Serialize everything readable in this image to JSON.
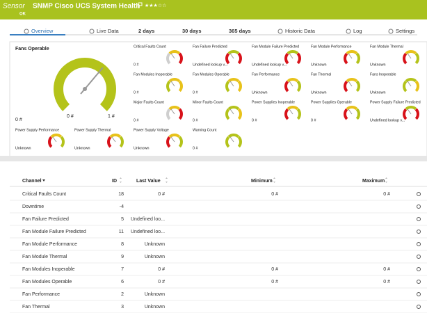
{
  "header": {
    "prefix": "Sensor",
    "title": "SNMP Cisco UCS System Health",
    "rating": "★★★☆☆",
    "status": "OK"
  },
  "tabs": [
    "Overview",
    "Live Data",
    "2  days",
    "30  days",
    "365  days",
    "Historic Data",
    "Log",
    "Settings"
  ],
  "overview": {
    "main_gauge": {
      "title": "Fans Operable",
      "min_label": "0 #",
      "value_label": "0 #",
      "max_label": "1 #",
      "color": "#b4c31a"
    },
    "gauges": [
      {
        "title": "Critical Faults Count",
        "value": "0 #",
        "colors": [
          "#cfcfcf",
          "#e8c21a",
          "#d8121a"
        ]
      },
      {
        "title": "Fan Failure Predicted",
        "value": "Undefined lookup v...",
        "colors": [
          "#d8121a",
          "#b4c31a",
          "#d8121a"
        ]
      },
      {
        "title": "Fan Module Failure Predicted",
        "value": "Undefined lookup v...",
        "colors": [
          "#d8121a",
          "#b4c31a",
          "#d8121a"
        ]
      },
      {
        "title": "Fan Module Performance",
        "value": "Unknown",
        "colors": [
          "#d8121a",
          "#e8c21a",
          "#b4c31a"
        ]
      },
      {
        "title": "Fan Module Thermal",
        "value": "Unknown",
        "colors": [
          "#d8121a",
          "#e8c21a",
          "#b4c31a"
        ]
      },
      {
        "title": "Fan Modules Inoperable",
        "value": "0 #",
        "colors": [
          "#b4c31a",
          "#e8c21a",
          "#e8c21a"
        ]
      },
      {
        "title": "Fan Modules Operable",
        "value": "0 #",
        "colors": [
          "#b4c31a",
          "#e8c21a",
          "#e8c21a"
        ]
      },
      {
        "title": "Fan Performance",
        "value": "Unknown",
        "colors": [
          "#d8121a",
          "#e8c21a",
          "#b4c31a"
        ]
      },
      {
        "title": "Fan Thermal",
        "value": "Unknown",
        "colors": [
          "#d8121a",
          "#e8c21a",
          "#b4c31a"
        ]
      },
      {
        "title": "Fans Inoperable",
        "value": "Unknown",
        "colors": [
          "#b4c31a",
          "#b4c31a",
          "#e8c21a"
        ]
      },
      {
        "title": "Major Faults Count",
        "value": "0 #",
        "colors": [
          "#cfcfcf",
          "#e8c21a",
          "#d8121a"
        ]
      },
      {
        "title": "Minor Faults Count",
        "value": "0 #",
        "colors": [
          "#b4c31a",
          "#b4c31a",
          "#e8c21a"
        ]
      },
      {
        "title": "Power Supplies Inoperable",
        "value": "0 #",
        "colors": [
          "#d8121a",
          "#e8c21a",
          "#b4c31a"
        ]
      },
      {
        "title": "Power Supplies Operable",
        "value": "0 #",
        "colors": [
          "#d8121a",
          "#e8c21a",
          "#b4c31a"
        ]
      },
      {
        "title": "Power Supply Failure Predicted",
        "value": "Undefined lookup v...",
        "colors": [
          "#d8121a",
          "#b4c31a",
          "#d8121a"
        ]
      },
      {
        "title": "Power Supply Performance",
        "value": "Unknown",
        "colors": [
          "#d8121a",
          "#e8c21a",
          "#b4c31a"
        ]
      },
      {
        "title": "Power Supply Thermal",
        "value": "Unknown",
        "colors": [
          "#d8121a",
          "#e8c21a",
          "#b4c31a"
        ]
      },
      {
        "title": "Power Supply Voltage",
        "value": "Unknown",
        "colors": [
          "#d8121a",
          "#e8c21a",
          "#b4c31a"
        ]
      },
      {
        "title": "Warning Count",
        "value": "0 #",
        "colors": [
          "#b4c31a",
          "#b4c31a",
          "#b4c31a"
        ]
      }
    ]
  },
  "table": {
    "columns": [
      "Channel",
      "ID",
      "Last Value",
      "Minimum",
      "Maximum"
    ],
    "rows": [
      [
        "Critical Faults Count",
        18,
        "0 #",
        "0 #",
        "0 #"
      ],
      [
        "Downtime",
        -4,
        null,
        null,
        null
      ],
      [
        "Fan Failure Predicted",
        5,
        "Undefined loo...",
        null,
        null
      ],
      [
        "Fan Module Failure Predicted",
        11,
        "Undefined loo...",
        null,
        null
      ],
      [
        "Fan Module Performance",
        8,
        "Unknown",
        null,
        null
      ],
      [
        "Fan Module Thermal",
        9,
        "Unknown",
        null,
        null
      ],
      [
        "Fan Modules Inoperable",
        7,
        "0 #",
        "0 #",
        "0 #"
      ],
      [
        "Fan Modules Operable",
        6,
        "0 #",
        "0 #",
        "0 #"
      ],
      [
        "Fan Performance",
        2,
        "Unknown",
        null,
        null
      ],
      [
        "Fan Thermal",
        3,
        "Unknown",
        null,
        null
      ]
    ]
  }
}
